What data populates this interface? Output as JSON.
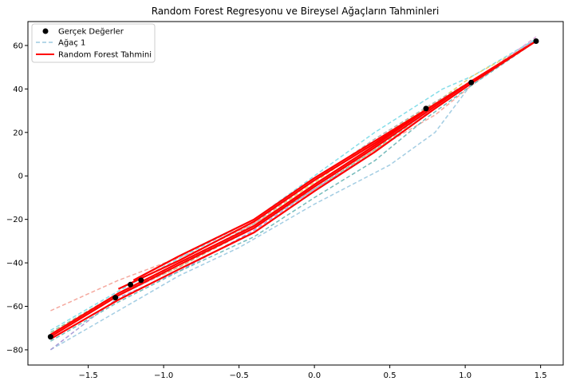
{
  "chart_data": {
    "type": "scatter",
    "title": "Random Forest Regresyonu ve Bireysel Ağaçların Tahminleri",
    "xlabel": "",
    "ylabel": "",
    "xlim": [
      -1.9,
      1.65
    ],
    "ylim": [
      -87,
      71
    ],
    "x_ticks": [
      -1.5,
      -1.0,
      -0.5,
      0.0,
      0.5,
      1.0,
      1.5
    ],
    "x_tick_labels": [
      "−1.5",
      "−1.0",
      "−0.5",
      "0.0",
      "0.5",
      "1.0",
      "1.5"
    ],
    "y_ticks": [
      -80,
      -60,
      -40,
      -20,
      0,
      20,
      40,
      60
    ],
    "y_tick_labels": [
      "−80",
      "−60",
      "−40",
      "−20",
      "0",
      "20",
      "40",
      "60"
    ],
    "grid": false,
    "legend_position": "top-left",
    "legend": [
      {
        "label": "Gerçek Değerler",
        "kind": "marker",
        "color": "#000000"
      },
      {
        "label": "Ağaç 1",
        "kind": "dashed",
        "color": "#9ecae1"
      },
      {
        "label": "Random Forest Tahmini",
        "kind": "solid",
        "color": "#ff0000"
      }
    ],
    "scatter": {
      "name": "Gerçek Değerler",
      "color": "#000000",
      "x": [
        -1.75,
        -1.32,
        -1.22,
        -1.15,
        0.74,
        1.04,
        1.47
      ],
      "y": [
        -74,
        -56,
        -50,
        -48,
        31,
        43,
        62
      ]
    },
    "trees": [
      {
        "color": "#9ecae1",
        "x": [
          -1.75,
          -1.3,
          -0.9,
          -0.5,
          0,
          0.5,
          0.8,
          1.05,
          1.47
        ],
        "y": [
          -80,
          -62,
          -46,
          -33,
          -13,
          5,
          20,
          43,
          63
        ]
      },
      {
        "color": "#f4a49a",
        "x": [
          -1.75,
          -1.3,
          -0.8,
          -0.4,
          0,
          0.4,
          0.8,
          1.05,
          1.47
        ],
        "y": [
          -62,
          -48,
          -35,
          -22,
          -5,
          12,
          28,
          42,
          63
        ]
      },
      {
        "color": "#8fbf8f",
        "x": [
          -1.75,
          -1.3,
          -0.9,
          -0.4,
          0,
          0.4,
          0.8,
          1.05,
          1.47
        ],
        "y": [
          -72,
          -54,
          -40,
          -24,
          -6,
          12,
          32,
          44,
          62
        ]
      },
      {
        "color": "#a89ad6",
        "x": [
          -1.75,
          -1.3,
          -0.9,
          -0.4,
          0,
          0.4,
          0.8,
          1.05,
          1.47
        ],
        "y": [
          -80,
          -56,
          -44,
          -25,
          -6,
          11,
          31,
          43,
          63
        ]
      },
      {
        "color": "#7fdbe8",
        "x": [
          -1.75,
          -1.3,
          -0.9,
          -0.4,
          0,
          0.4,
          0.85,
          1.05,
          1.47
        ],
        "y": [
          -71,
          -53,
          -38,
          -20,
          0,
          20,
          40,
          46,
          63
        ]
      },
      {
        "color": "#e5cf6a",
        "x": [
          -1.75,
          -1.3,
          -0.9,
          -0.4,
          0,
          0.4,
          0.85,
          1.05,
          1.47
        ],
        "y": [
          -73,
          -55,
          -42,
          -22,
          -3,
          16,
          36,
          46,
          62
        ]
      },
      {
        "color": "#b0b0b0",
        "x": [
          -1.75,
          -1.3,
          -0.9,
          -0.4,
          0,
          0.4,
          0.8,
          1.05,
          1.47
        ],
        "y": [
          -73,
          -54,
          -41,
          -22,
          -2,
          17,
          34,
          44,
          62
        ]
      },
      {
        "color": "#dba4d8",
        "x": [
          -1.75,
          -1.3,
          -0.9,
          -0.4,
          0,
          0.4,
          0.8,
          1.05,
          1.47
        ],
        "y": [
          -74,
          -55,
          -42,
          -23,
          -4,
          14,
          31,
          43,
          64
        ]
      },
      {
        "color": "#6fb7b7",
        "x": [
          -1.75,
          -1.3,
          -0.9,
          -0.4,
          0,
          0.4,
          0.75,
          1.05,
          1.47
        ],
        "y": [
          -76,
          -58,
          -44,
          -28,
          -10,
          7,
          27,
          42,
          62
        ]
      },
      {
        "color": "#c7b27f",
        "x": [
          -1.75,
          -1.3,
          -0.9,
          -0.4,
          0,
          0.4,
          0.8,
          1.05,
          1.47
        ],
        "y": [
          -74,
          -54,
          -42,
          -24,
          -5,
          13,
          32,
          44,
          62
        ]
      }
    ],
    "forest": {
      "name": "Random Forest Tahmini",
      "color": "#ff0000",
      "lines": [
        {
          "x": [
            -1.75,
            -1.3,
            -0.9,
            -0.4,
            0,
            0.4,
            0.8,
            1.05,
            1.47
          ],
          "y": [
            -75,
            -57,
            -43,
            -26,
            -7,
            11,
            31,
            43,
            62
          ]
        },
        {
          "x": [
            -1.75,
            -1.3,
            -0.9,
            -0.4,
            0,
            0.4,
            0.8,
            1.05,
            1.47
          ],
          "y": [
            -74,
            -55,
            -41,
            -24,
            -5,
            13,
            32,
            44,
            62
          ]
        },
        {
          "x": [
            -1.75,
            -1.3,
            -0.9,
            -0.4,
            0,
            0.4,
            0.8,
            1.05,
            1.47
          ],
          "y": [
            -73,
            -54,
            -40,
            -23,
            -4,
            14,
            33,
            44,
            62
          ]
        },
        {
          "x": [
            -1.3,
            -0.9,
            -0.4,
            0,
            0.4,
            0.8
          ],
          "y": [
            -52,
            -39,
            -21,
            -2,
            15,
            33
          ]
        },
        {
          "x": [
            -1.2,
            -0.9,
            -0.4,
            0,
            0.4,
            0.8
          ],
          "y": [
            -48,
            -37,
            -20,
            -1,
            16,
            33
          ]
        }
      ]
    }
  }
}
